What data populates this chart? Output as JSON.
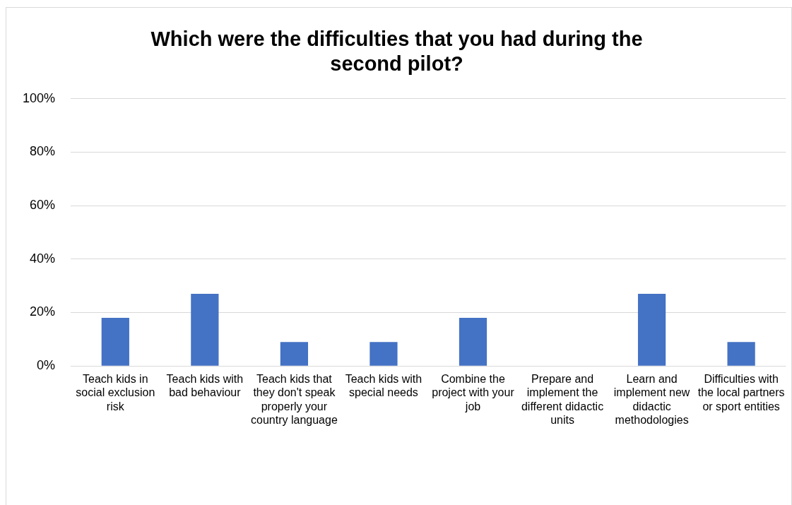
{
  "chart_data": {
    "type": "bar",
    "title": "Which were the difficulties that you had during the second pilot?",
    "categories": [
      "Teach kids in social exclusion risk",
      "Teach kids with bad behaviour",
      "Teach kids that they don't speak properly your country language",
      "Teach kids with special needs",
      "Combine the project with your job",
      "Prepare and implement the different didactic units",
      "Learn and implement new didactic methodologies",
      "Difficulties with the local partners or sport entities"
    ],
    "values": [
      18,
      27,
      9,
      9,
      18,
      0,
      27,
      9
    ],
    "color": "#4472c4",
    "ylim": [
      0,
      100
    ],
    "yticks": [
      {
        "value": 0,
        "label": "0%"
      },
      {
        "value": 20,
        "label": "20%"
      },
      {
        "value": 40,
        "label": "40%"
      },
      {
        "value": 60,
        "label": "60%"
      },
      {
        "value": 80,
        "label": "80%"
      },
      {
        "value": 100,
        "label": "100%"
      }
    ],
    "grid": "y",
    "legend": false
  }
}
